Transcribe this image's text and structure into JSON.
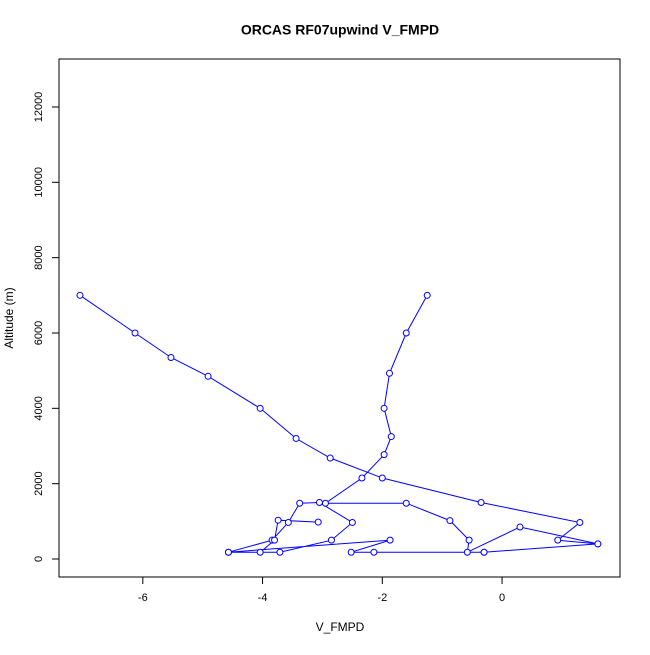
{
  "chart_data": {
    "type": "line",
    "title": "ORCAS RF07upwind V_FMPD",
    "x_label": "V_FMPD",
    "y_label": "Altitude (m)",
    "series": [
      {
        "name": "V_FMPD",
        "color": "#0000ff",
        "x": [
          -7.05,
          -6.13,
          -5.53,
          -4.91,
          -4.04,
          -3.44,
          -2.87,
          -2.0,
          -0.35,
          1.3,
          0.93,
          1.6,
          -0.3,
          -2.52,
          -1.87,
          -4.57,
          -3.71,
          -2.85,
          -2.5,
          -3.05,
          -3.38,
          -3.57,
          -3.84,
          -4.57,
          -4.04,
          -3.8,
          -3.74,
          -3.07,
          null,
          -1.25,
          -1.6,
          -1.88,
          -1.97,
          -1.85,
          -1.97,
          -2.34,
          -2.95,
          -1.6,
          -0.87,
          -0.55,
          -0.58,
          0.3,
          1.6,
          -0.3,
          -2.14
        ],
        "values": [
          7000,
          6000,
          5350,
          4850,
          4000,
          3200,
          2680,
          2150,
          1500,
          970,
          500,
          400,
          180,
          180,
          500,
          180,
          180,
          500,
          970,
          1500,
          1480,
          970,
          500,
          180,
          180,
          500,
          1030,
          980,
          null,
          7000,
          6000,
          4930,
          4000,
          3250,
          2770,
          2150,
          1480,
          1480,
          1020,
          500,
          180,
          850,
          400,
          180,
          180
        ]
      }
    ],
    "xlim": [
      -7.4,
      1.97
    ],
    "ylim": [
      -478,
      13274
    ],
    "xticks": [
      -6,
      -4,
      -2,
      0
    ],
    "yticks": [
      0,
      2000,
      4000,
      6000,
      8000,
      10000,
      12000
    ]
  }
}
